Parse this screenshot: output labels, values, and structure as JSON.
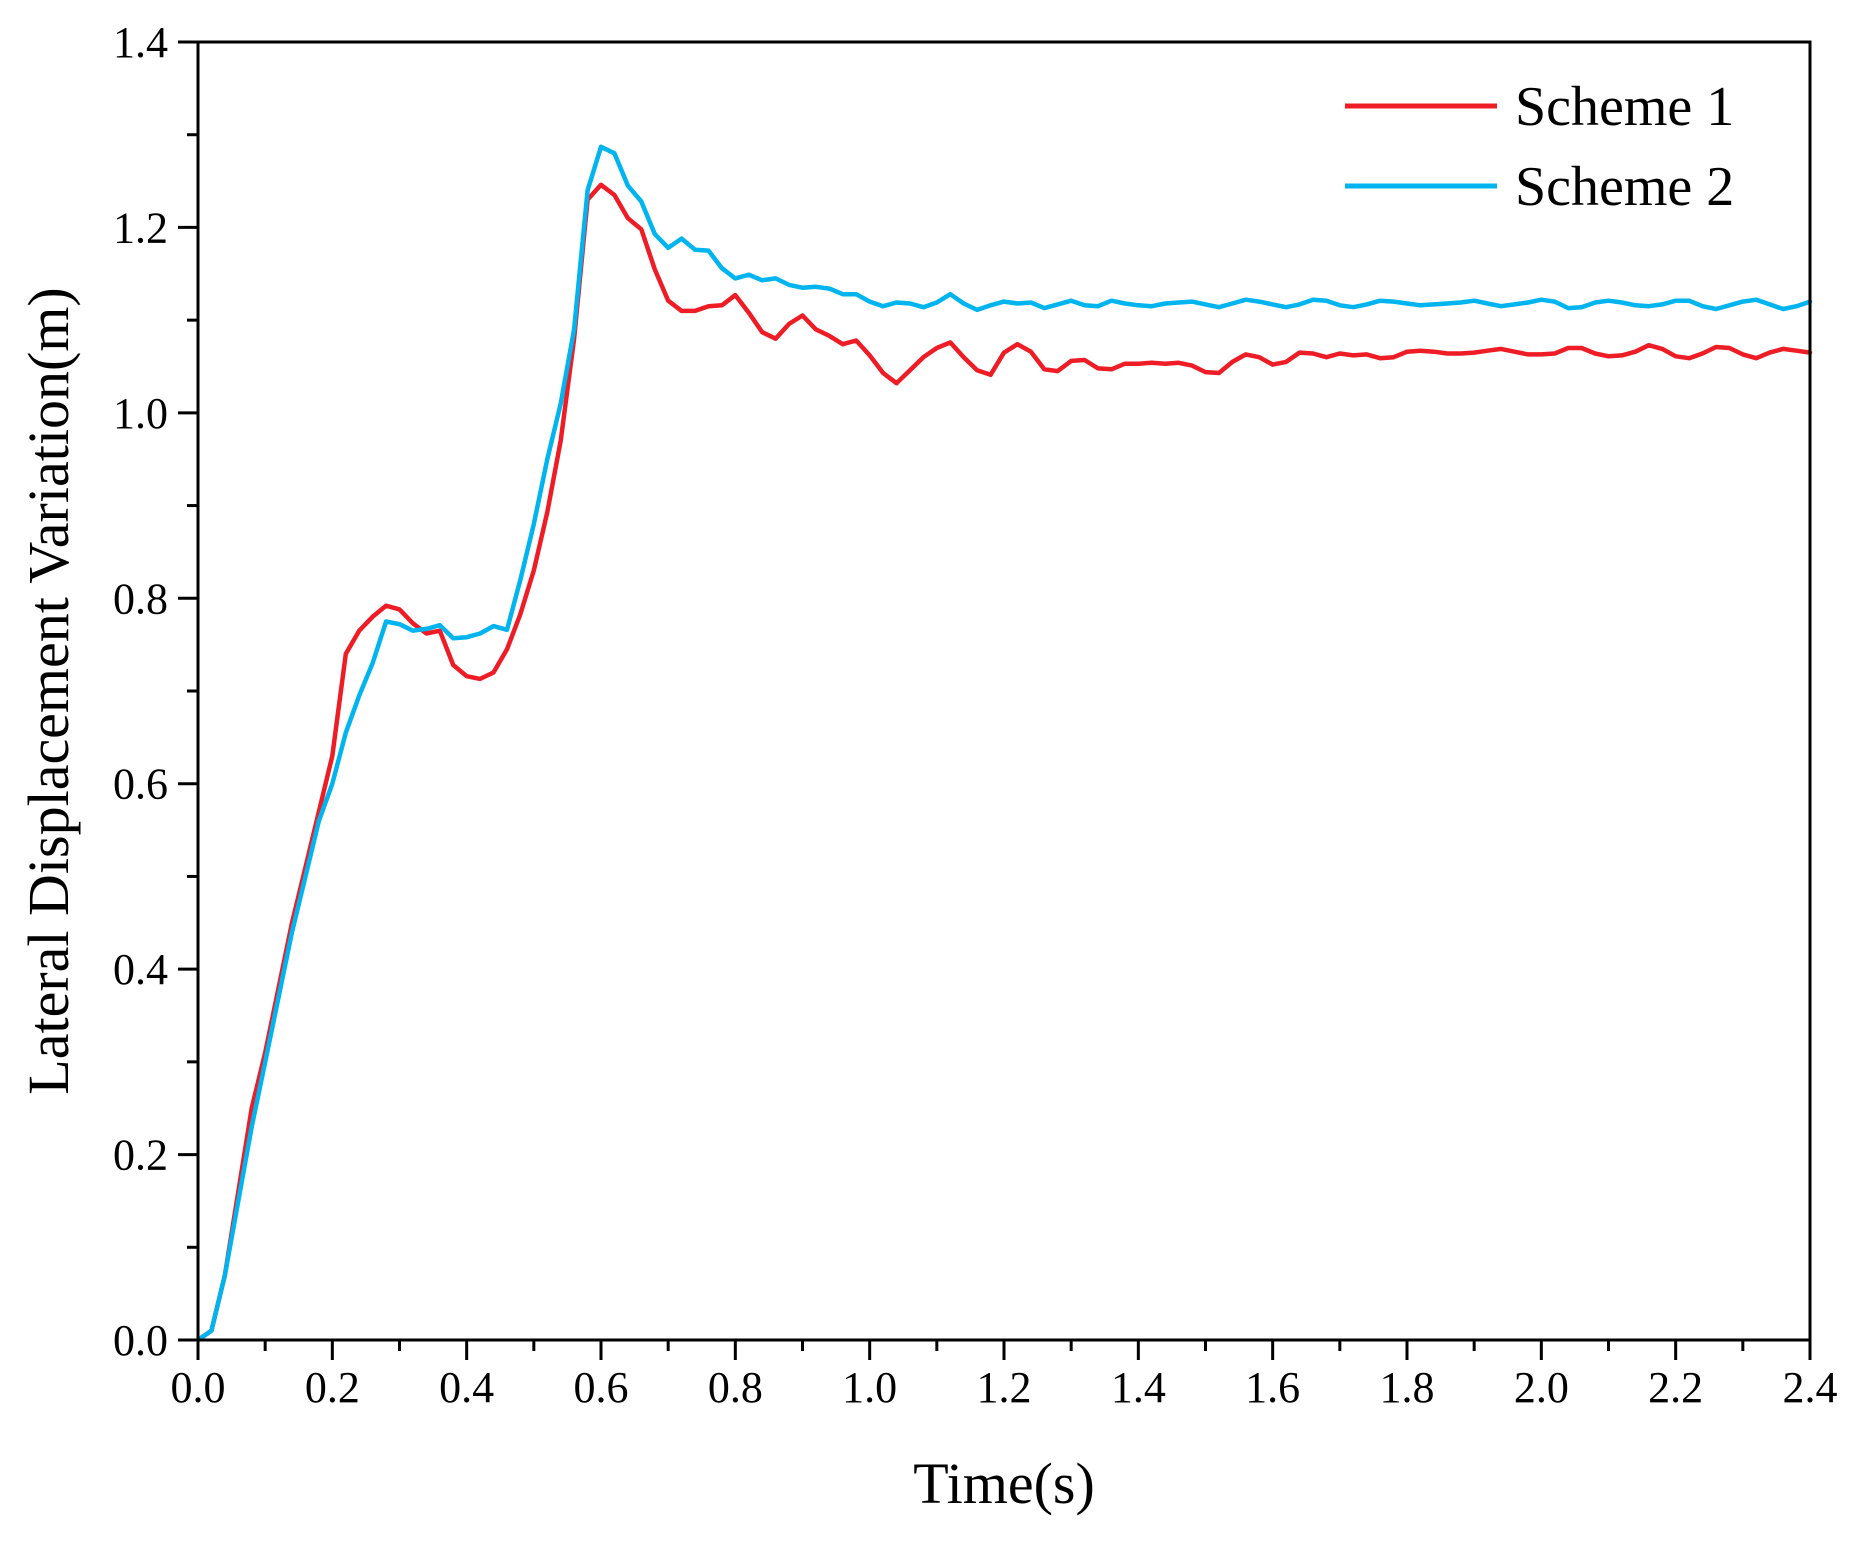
{
  "chart_data": {
    "type": "line",
    "title": "",
    "xlabel": "Time(s)",
    "ylabel": "Lateral Displacement Variation(m)",
    "xlim": [
      0,
      2.4
    ],
    "ylim": [
      0,
      1.4
    ],
    "xticks": [
      0.0,
      0.2,
      0.4,
      0.6,
      0.8,
      1.0,
      1.2,
      1.4,
      1.6,
      1.8,
      2.0,
      2.2,
      2.4
    ],
    "xtick_labels": [
      "0.0",
      "0.2",
      "0.4",
      "0.6",
      "0.8",
      "1.0",
      "1.2",
      "1.4",
      "1.6",
      "1.8",
      "2.0",
      "2.2",
      "2.4"
    ],
    "yticks": [
      0.0,
      0.2,
      0.4,
      0.6,
      0.8,
      1.0,
      1.2,
      1.4
    ],
    "ytick_labels": [
      "0.0",
      "0.2",
      "0.4",
      "0.6",
      "0.8",
      "1.0",
      "1.2",
      "1.4"
    ],
    "grid": false,
    "legend": "top-right",
    "series": [
      {
        "name": "Scheme 1",
        "color": "#ee1c25",
        "x": [
          0.0,
          0.02,
          0.04,
          0.06,
          0.08,
          0.1,
          0.12,
          0.14,
          0.16,
          0.18,
          0.2,
          0.22,
          0.24,
          0.26,
          0.28,
          0.3,
          0.32,
          0.34,
          0.36,
          0.38,
          0.4,
          0.42,
          0.44,
          0.46,
          0.48,
          0.5,
          0.52,
          0.54,
          0.56,
          0.58,
          0.6,
          0.62,
          0.64,
          0.66,
          0.68,
          0.7,
          0.72,
          0.74,
          0.76,
          0.78,
          0.8,
          0.82,
          0.84,
          0.86,
          0.88,
          0.9,
          0.92,
          0.94,
          0.96,
          0.98,
          1.0,
          1.02,
          1.04,
          1.06,
          1.08,
          1.1,
          1.12,
          1.14,
          1.16,
          1.18,
          1.2,
          1.22,
          1.24,
          1.26,
          1.28,
          1.3,
          1.32,
          1.34,
          1.36,
          1.38,
          1.4,
          1.42,
          1.44,
          1.46,
          1.48,
          1.5,
          1.52,
          1.54,
          1.56,
          1.58,
          1.6,
          1.62,
          1.64,
          1.66,
          1.68,
          1.7,
          1.72,
          1.74,
          1.76,
          1.78,
          1.8,
          1.82,
          1.84,
          1.86,
          1.88,
          1.9,
          1.92,
          1.94,
          1.96,
          1.98,
          2.0,
          2.02,
          2.04,
          2.06,
          2.08,
          2.1,
          2.12,
          2.14,
          2.16,
          2.18,
          2.2,
          2.22,
          2.24,
          2.26,
          2.28,
          2.3,
          2.32,
          2.34,
          2.36,
          2.38,
          2.4
        ],
        "y": [
          0.0,
          0.01,
          0.07,
          0.16,
          0.25,
          0.31,
          0.38,
          0.45,
          0.51,
          0.57,
          0.63,
          0.74,
          0.765,
          0.78,
          0.792,
          0.788,
          0.773,
          0.762,
          0.765,
          0.728,
          0.716,
          0.713,
          0.72,
          0.745,
          0.783,
          0.83,
          0.893,
          0.97,
          1.08,
          1.23,
          1.246,
          1.235,
          1.21,
          1.198,
          1.155,
          1.121,
          1.11,
          1.11,
          1.115,
          1.116,
          1.127,
          1.108,
          1.087,
          1.08,
          1.096,
          1.105,
          1.09,
          1.083,
          1.074,
          1.078,
          1.062,
          1.043,
          1.032,
          1.046,
          1.06,
          1.07,
          1.076,
          1.06,
          1.046,
          1.041,
          1.065,
          1.074,
          1.066,
          1.047,
          1.045,
          1.056,
          1.057,
          1.048,
          1.047,
          1.053,
          1.053,
          1.054,
          1.053,
          1.054,
          1.051,
          1.044,
          1.043,
          1.055,
          1.063,
          1.06,
          1.052,
          1.055,
          1.065,
          1.064,
          1.06,
          1.064,
          1.062,
          1.063,
          1.059,
          1.06,
          1.066,
          1.067,
          1.066,
          1.064,
          1.064,
          1.065,
          1.067,
          1.069,
          1.066,
          1.063,
          1.063,
          1.064,
          1.07,
          1.07,
          1.064,
          1.061,
          1.062,
          1.066,
          1.073,
          1.069,
          1.061,
          1.059,
          1.064,
          1.071,
          1.07,
          1.063,
          1.059,
          1.065,
          1.069,
          1.067,
          1.065
        ]
      },
      {
        "name": "Scheme 2",
        "color": "#00b4ef",
        "x": [
          0.0,
          0.02,
          0.04,
          0.06,
          0.08,
          0.1,
          0.12,
          0.14,
          0.16,
          0.18,
          0.2,
          0.22,
          0.24,
          0.26,
          0.28,
          0.3,
          0.32,
          0.34,
          0.36,
          0.38,
          0.4,
          0.42,
          0.44,
          0.46,
          0.48,
          0.5,
          0.52,
          0.54,
          0.56,
          0.58,
          0.6,
          0.62,
          0.64,
          0.66,
          0.68,
          0.7,
          0.72,
          0.74,
          0.76,
          0.78,
          0.8,
          0.82,
          0.84,
          0.86,
          0.88,
          0.9,
          0.92,
          0.94,
          0.96,
          0.98,
          1.0,
          1.02,
          1.04,
          1.06,
          1.08,
          1.1,
          1.12,
          1.14,
          1.16,
          1.18,
          1.2,
          1.22,
          1.24,
          1.26,
          1.28,
          1.3,
          1.32,
          1.34,
          1.36,
          1.38,
          1.4,
          1.42,
          1.44,
          1.46,
          1.48,
          1.5,
          1.52,
          1.54,
          1.56,
          1.58,
          1.6,
          1.62,
          1.64,
          1.66,
          1.68,
          1.7,
          1.72,
          1.74,
          1.76,
          1.78,
          1.8,
          1.82,
          1.84,
          1.86,
          1.88,
          1.9,
          1.92,
          1.94,
          1.96,
          1.98,
          2.0,
          2.02,
          2.04,
          2.06,
          2.08,
          2.1,
          2.12,
          2.14,
          2.16,
          2.18,
          2.2,
          2.22,
          2.24,
          2.26,
          2.28,
          2.3,
          2.32,
          2.34,
          2.36,
          2.38,
          2.4
        ],
        "y": [
          0.0,
          0.01,
          0.07,
          0.15,
          0.23,
          0.3,
          0.37,
          0.44,
          0.5,
          0.56,
          0.6,
          0.655,
          0.695,
          0.73,
          0.775,
          0.772,
          0.765,
          0.767,
          0.771,
          0.757,
          0.758,
          0.762,
          0.77,
          0.766,
          0.82,
          0.88,
          0.95,
          1.01,
          1.09,
          1.24,
          1.287,
          1.28,
          1.245,
          1.228,
          1.193,
          1.178,
          1.188,
          1.176,
          1.175,
          1.156,
          1.145,
          1.149,
          1.143,
          1.145,
          1.138,
          1.135,
          1.136,
          1.134,
          1.128,
          1.128,
          1.12,
          1.115,
          1.119,
          1.118,
          1.114,
          1.119,
          1.128,
          1.118,
          1.111,
          1.116,
          1.12,
          1.118,
          1.119,
          1.113,
          1.117,
          1.121,
          1.116,
          1.115,
          1.121,
          1.118,
          1.116,
          1.115,
          1.118,
          1.119,
          1.12,
          1.117,
          1.114,
          1.118,
          1.122,
          1.12,
          1.117,
          1.114,
          1.117,
          1.122,
          1.121,
          1.116,
          1.114,
          1.117,
          1.121,
          1.12,
          1.118,
          1.116,
          1.117,
          1.118,
          1.119,
          1.121,
          1.118,
          1.115,
          1.117,
          1.119,
          1.122,
          1.12,
          1.113,
          1.114,
          1.119,
          1.121,
          1.119,
          1.116,
          1.115,
          1.117,
          1.121,
          1.121,
          1.115,
          1.112,
          1.116,
          1.12,
          1.122,
          1.117,
          1.112,
          1.115,
          1.12
        ]
      }
    ]
  }
}
